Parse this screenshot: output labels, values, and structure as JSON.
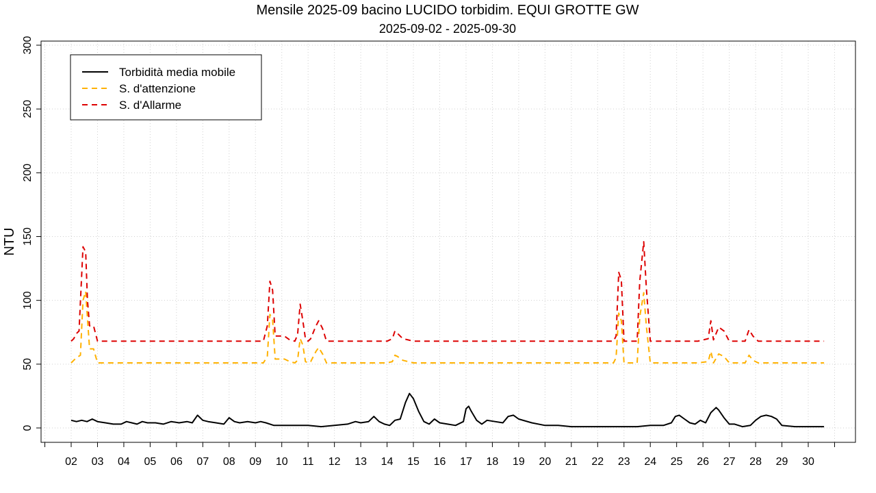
{
  "chart_data": {
    "type": "line",
    "title": "Mensile 2025-09 bacino LUCIDO torbidim. EQUI GROTTE GW",
    "subtitle": "2025-09-02 - 2025-09-30",
    "ylabel": "NTU",
    "ylim": [
      0,
      300
    ],
    "yticks": [
      0,
      50,
      100,
      150,
      200,
      250,
      300
    ],
    "xlim": [
      2.0,
      30.7
    ],
    "xticks": [
      2,
      3,
      4,
      5,
      6,
      7,
      8,
      9,
      10,
      11,
      12,
      13,
      14,
      15,
      16,
      17,
      18,
      19,
      20,
      21,
      22,
      23,
      24,
      25,
      26,
      27,
      28,
      29,
      30
    ],
    "xtick_labels": [
      "02",
      "03",
      "04",
      "05",
      "06",
      "07",
      "08",
      "09",
      "10",
      "11",
      "12",
      "13",
      "14",
      "15",
      "16",
      "17",
      "18",
      "19",
      "20",
      "21",
      "22",
      "23",
      "24",
      "25",
      "26",
      "27",
      "28",
      "29",
      "30"
    ],
    "grid": true,
    "legend_position": "top-left",
    "series": [
      {
        "name": "Torbidità media mobile",
        "color": "#000000",
        "dash": "solid",
        "x": [
          2.0,
          2.2,
          2.4,
          2.6,
          2.8,
          3.0,
          3.3,
          3.6,
          3.9,
          4.1,
          4.3,
          4.5,
          4.7,
          4.9,
          5.2,
          5.5,
          5.8,
          6.1,
          6.4,
          6.6,
          6.8,
          7.0,
          7.2,
          7.5,
          7.8,
          8.0,
          8.2,
          8.4,
          8.7,
          9.0,
          9.2,
          9.4,
          9.7,
          10.0,
          10.5,
          11.0,
          11.5,
          12.0,
          12.5,
          12.8,
          13.0,
          13.3,
          13.5,
          13.7,
          13.9,
          14.1,
          14.3,
          14.5,
          14.7,
          14.85,
          15.0,
          15.2,
          15.4,
          15.6,
          15.8,
          16.0,
          16.3,
          16.6,
          16.9,
          17.0,
          17.1,
          17.2,
          17.4,
          17.6,
          17.8,
          18.1,
          18.4,
          18.6,
          18.8,
          19.0,
          19.5,
          20.0,
          20.5,
          21.0,
          21.5,
          22.0,
          22.5,
          23.0,
          23.5,
          24.0,
          24.5,
          24.8,
          24.95,
          25.1,
          25.3,
          25.5,
          25.7,
          25.9,
          26.1,
          26.3,
          26.5,
          26.6,
          26.8,
          27.0,
          27.2,
          27.5,
          27.8,
          28.0,
          28.2,
          28.4,
          28.6,
          28.8,
          29.0,
          29.5,
          30.0,
          30.6
        ],
        "y": [
          6,
          5,
          6,
          5,
          7,
          5,
          4,
          3,
          3,
          5,
          4,
          3,
          5,
          4,
          4,
          3,
          5,
          4,
          5,
          4,
          10,
          6,
          5,
          4,
          3,
          8,
          5,
          4,
          5,
          4,
          5,
          4,
          2,
          2,
          2,
          2,
          1,
          2,
          3,
          5,
          4,
          5,
          9,
          5,
          3,
          2,
          6,
          7,
          20,
          27,
          23,
          13,
          5,
          3,
          7,
          4,
          3,
          2,
          5,
          15,
          17,
          13,
          6,
          3,
          6,
          5,
          4,
          9,
          10,
          7,
          4,
          2,
          2,
          1,
          1,
          1,
          1,
          1,
          1,
          2,
          2,
          4,
          9,
          10,
          7,
          4,
          3,
          6,
          4,
          12,
          16,
          14,
          8,
          3,
          3,
          1,
          2,
          6,
          9,
          10,
          9,
          7,
          2,
          1,
          1,
          1
        ]
      },
      {
        "name": "S. d'attenzione",
        "color": "#FFB100",
        "dash": "dashed",
        "x": [
          2.0,
          2.1,
          2.2,
          2.35,
          2.45,
          2.55,
          2.62,
          2.7,
          2.85,
          3.0,
          3.2,
          4.0,
          5.0,
          6.0,
          7.0,
          8.0,
          9.0,
          9.3,
          9.45,
          9.55,
          9.65,
          9.75,
          9.9,
          10.1,
          10.3,
          10.5,
          10.6,
          10.7,
          10.8,
          10.9,
          11.0,
          11.1,
          11.3,
          11.4,
          11.55,
          11.7,
          12.0,
          13.0,
          14.0,
          14.2,
          14.3,
          14.4,
          14.6,
          14.8,
          15.0,
          16.0,
          17.0,
          18.0,
          19.0,
          20.0,
          21.0,
          22.0,
          22.6,
          22.7,
          22.8,
          22.9,
          23.0,
          23.1,
          23.5,
          23.6,
          23.75,
          23.85,
          24.0,
          25.0,
          25.8,
          26.2,
          26.3,
          26.4,
          26.6,
          26.8,
          27.0,
          27.6,
          27.75,
          27.9,
          28.1,
          30.6
        ],
        "y": [
          51,
          53,
          55,
          57,
          100,
          107,
          86,
          62,
          62,
          51,
          51,
          51,
          51,
          51,
          51,
          51,
          51,
          51,
          56,
          89,
          85,
          54,
          54,
          54,
          52,
          51,
          53,
          70,
          65,
          52,
          51,
          52,
          60,
          63,
          58,
          51,
          51,
          51,
          51,
          52,
          57,
          56,
          53,
          52,
          51,
          51,
          51,
          51,
          51,
          51,
          51,
          51,
          51,
          55,
          90,
          84,
          51,
          51,
          51,
          87,
          106,
          80,
          51,
          51,
          51,
          52,
          60,
          51,
          58,
          56,
          51,
          51,
          57,
          53,
          51,
          51
        ]
      },
      {
        "name": "S. d'Allarme",
        "color": "#DD0000",
        "dash": "dashed",
        "x": [
          2.0,
          2.1,
          2.2,
          2.3,
          2.45,
          2.55,
          2.62,
          2.7,
          2.85,
          3.0,
          3.2,
          4.0,
          5.0,
          6.0,
          7.0,
          8.0,
          9.0,
          9.3,
          9.45,
          9.55,
          9.65,
          9.75,
          9.9,
          10.1,
          10.3,
          10.5,
          10.6,
          10.7,
          10.8,
          10.9,
          11.0,
          11.1,
          11.3,
          11.4,
          11.55,
          11.7,
          12.0,
          13.0,
          14.0,
          14.2,
          14.3,
          14.4,
          14.6,
          14.8,
          15.0,
          16.0,
          17.0,
          18.0,
          19.0,
          20.0,
          21.0,
          22.0,
          22.6,
          22.7,
          22.8,
          22.9,
          23.0,
          23.1,
          23.5,
          23.6,
          23.75,
          23.85,
          24.0,
          25.0,
          25.8,
          26.2,
          26.3,
          26.4,
          26.6,
          26.8,
          27.0,
          27.6,
          27.75,
          27.9,
          28.1,
          30.6
        ],
        "y": [
          68,
          70,
          74,
          76,
          142,
          138,
          100,
          80,
          80,
          68,
          68,
          68,
          68,
          68,
          68,
          68,
          68,
          68,
          80,
          115,
          108,
          72,
          72,
          72,
          69,
          68,
          73,
          97,
          84,
          70,
          68,
          70,
          80,
          84,
          78,
          68,
          68,
          68,
          68,
          70,
          76,
          74,
          70,
          69,
          68,
          68,
          68,
          68,
          68,
          68,
          68,
          68,
          68,
          72,
          122,
          116,
          68,
          68,
          68,
          115,
          146,
          110,
          68,
          68,
          68,
          70,
          84,
          69,
          79,
          76,
          68,
          68,
          77,
          72,
          68,
          68
        ]
      }
    ]
  }
}
